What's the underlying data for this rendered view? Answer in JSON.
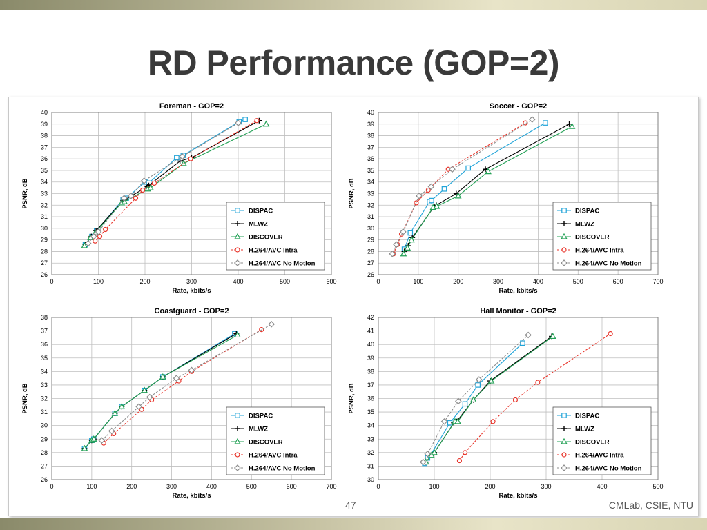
{
  "slide": {
    "title": "RD Performance (GOP=2)",
    "page_number": "47",
    "footer": "CMLab, CSIE, NTU"
  },
  "series_styles": {
    "DISPAC": {
      "color": "#1fa3d8",
      "marker": "square",
      "dash": false
    },
    "MLWZ": {
      "color": "#000000",
      "marker": "plus",
      "dash": false
    },
    "DISCOVER": {
      "color": "#22a055",
      "marker": "triangle",
      "dash": false
    },
    "H.264/AVC Intra": {
      "color": "#e8352b",
      "marker": "circle",
      "dash": true
    },
    "H.264/AVC No Motion": {
      "color": "#8c8c8c",
      "marker": "diamond",
      "dash": true
    }
  },
  "chart_data": [
    {
      "type": "line",
      "title": "Foreman - GOP=2",
      "xlabel": "Rate, kbits/s",
      "ylabel": "PSNR, dB",
      "xlim": [
        0,
        600
      ],
      "ylim": [
        26,
        40
      ],
      "xticks": [
        0,
        100,
        200,
        300,
        400,
        500,
        600
      ],
      "yticks": [
        26,
        27,
        28,
        29,
        30,
        31,
        32,
        33,
        34,
        35,
        36,
        37,
        38,
        39,
        40
      ],
      "grid": true,
      "legend": "bottom-right",
      "series": [
        {
          "name": "DISPAC",
          "x": [
            72,
            86,
            96,
            153,
            160,
            200,
            208,
            268,
            282,
            402,
            415
          ],
          "y": [
            28.6,
            29.3,
            29.8,
            32.5,
            32.6,
            34.0,
            33.9,
            36.1,
            36.3,
            39.2,
            39.4
          ]
        },
        {
          "name": "MLWZ",
          "x": [
            72,
            85,
            95,
            153,
            158,
            205,
            208,
            275,
            300,
            445
          ],
          "y": [
            28.6,
            29.3,
            29.8,
            32.4,
            32.5,
            33.6,
            33.7,
            35.8,
            36.1,
            39.3
          ]
        },
        {
          "name": "DISCOVER",
          "x": [
            70,
            83,
            93,
            150,
            156,
            206,
            212,
            283,
            460
          ],
          "y": [
            28.5,
            29.2,
            29.6,
            32.2,
            32.3,
            33.4,
            33.5,
            35.6,
            39.0
          ]
        },
        {
          "name": "H.264/AVC Intra",
          "x": [
            93,
            103,
            115,
            180,
            195,
            220,
            298,
            440
          ],
          "y": [
            28.9,
            29.3,
            29.9,
            32.6,
            33.3,
            33.9,
            36.0,
            39.3
          ]
        },
        {
          "name": "H.264/AVC No Motion",
          "x": [
            78,
            90,
            100,
            155,
            170,
            198,
            280,
            400
          ],
          "y": [
            28.7,
            29.3,
            29.7,
            32.6,
            32.8,
            34.1,
            36.2,
            39.1
          ]
        }
      ]
    },
    {
      "type": "line",
      "title": "Soccer - GOP=2",
      "xlabel": "Rate, kbits/s",
      "ylabel": "PSNR, dB",
      "xlim": [
        0,
        700
      ],
      "ylim": [
        26,
        40
      ],
      "xticks": [
        0,
        100,
        200,
        300,
        400,
        500,
        600,
        700
      ],
      "yticks": [
        26,
        27,
        28,
        29,
        30,
        31,
        32,
        33,
        34,
        35,
        36,
        37,
        38,
        39,
        40
      ],
      "grid": true,
      "legend": "bottom-right",
      "series": [
        {
          "name": "DISPAC",
          "x": [
            65,
            80,
            128,
            133,
            165,
            225,
            418
          ],
          "y": [
            28.2,
            29.6,
            32.3,
            32.4,
            33.4,
            35.2,
            39.1
          ]
        },
        {
          "name": "MLWZ",
          "x": [
            65,
            75,
            85,
            140,
            145,
            195,
            268,
            478
          ],
          "y": [
            28.0,
            28.5,
            29.2,
            31.9,
            32.0,
            33.0,
            35.1,
            39.0
          ]
        },
        {
          "name": "DISCOVER",
          "x": [
            63,
            73,
            83,
            137,
            146,
            200,
            275,
            485
          ],
          "y": [
            27.8,
            28.3,
            29.0,
            31.8,
            31.9,
            32.8,
            34.9,
            38.8
          ]
        },
        {
          "name": "H.264/AVC Intra",
          "x": [
            38,
            48,
            58,
            95,
            125,
            175,
            368
          ],
          "y": [
            27.8,
            28.6,
            29.5,
            32.2,
            33.3,
            35.1,
            39.1
          ]
        },
        {
          "name": "H.264/AVC No Motion",
          "x": [
            35,
            45,
            62,
            102,
            132,
            185,
            385
          ],
          "y": [
            27.8,
            28.6,
            29.7,
            32.8,
            33.6,
            35.1,
            39.4
          ]
        }
      ]
    },
    {
      "type": "line",
      "title": "Coastguard - GOP=2",
      "xlabel": "Rate, kbits/s",
      "ylabel": "PSNR, dB",
      "xlim": [
        0,
        700
      ],
      "ylim": [
        26,
        38
      ],
      "xticks": [
        0,
        100,
        200,
        300,
        400,
        500,
        600,
        700
      ],
      "yticks": [
        26,
        27,
        28,
        29,
        30,
        31,
        32,
        33,
        34,
        35,
        36,
        37,
        38
      ],
      "grid": true,
      "legend": "bottom-right",
      "series": [
        {
          "name": "DISPAC",
          "x": [
            82,
            100,
            105,
            158,
            175,
            232,
            278,
            458
          ],
          "y": [
            28.3,
            28.9,
            29.0,
            30.9,
            31.4,
            32.6,
            33.6,
            36.8
          ]
        },
        {
          "name": "MLWZ",
          "x": [
            82,
            100,
            105,
            158,
            175,
            232,
            278,
            462
          ],
          "y": [
            28.3,
            28.9,
            29.0,
            30.9,
            31.4,
            32.6,
            33.6,
            36.8
          ]
        },
        {
          "name": "DISCOVER",
          "x": [
            82,
            100,
            105,
            158,
            175,
            232,
            278,
            465
          ],
          "y": [
            28.3,
            28.9,
            29.0,
            30.9,
            31.4,
            32.6,
            33.6,
            36.7
          ]
        },
        {
          "name": "H.264/AVC Intra",
          "x": [
            130,
            155,
            225,
            250,
            318,
            350,
            525
          ],
          "y": [
            28.7,
            29.4,
            31.2,
            31.9,
            33.3,
            34.0,
            37.1
          ]
        },
        {
          "name": "H.264/AVC No Motion",
          "x": [
            125,
            150,
            218,
            245,
            312,
            350,
            550
          ],
          "y": [
            28.9,
            29.6,
            31.4,
            32.1,
            33.5,
            34.1,
            37.5
          ]
        }
      ]
    },
    {
      "type": "line",
      "title": "Hall Monitor - GOP=2",
      "xlabel": "Rate, kbits/s",
      "ylabel": "PSNR, dB",
      "xlim": [
        0,
        500
      ],
      "ylim": [
        30,
        42
      ],
      "xticks": [
        0,
        100,
        200,
        300,
        400,
        500
      ],
      "yticks": [
        30,
        31,
        32,
        33,
        34,
        35,
        36,
        37,
        38,
        39,
        40,
        41,
        42
      ],
      "grid": true,
      "legend": "bottom-right",
      "series": [
        {
          "name": "DISPAC",
          "x": [
            83,
            88,
            93,
            128,
            155,
            178,
            258
          ],
          "y": [
            31.2,
            31.6,
            31.8,
            34.2,
            35.6,
            37.0,
            40.1
          ]
        },
        {
          "name": "MLWZ",
          "x": [
            85,
            95,
            100,
            135,
            140,
            170,
            200,
            310
          ],
          "y": [
            31.3,
            31.8,
            32.0,
            34.2,
            34.3,
            35.9,
            37.3,
            40.6
          ]
        },
        {
          "name": "DISCOVER",
          "x": [
            85,
            95,
            100,
            137,
            142,
            170,
            202,
            312
          ],
          "y": [
            31.3,
            31.8,
            32.0,
            34.3,
            34.3,
            35.9,
            37.3,
            40.6
          ]
        },
        {
          "name": "H.264/AVC Intra",
          "x": [
            145,
            155,
            205,
            245,
            285,
            415
          ],
          "y": [
            31.4,
            32.0,
            34.3,
            35.9,
            37.2,
            40.8
          ]
        },
        {
          "name": "H.264/AVC No Motion",
          "x": [
            80,
            88,
            118,
            143,
            180,
            268
          ],
          "y": [
            31.3,
            31.9,
            34.3,
            35.8,
            37.4,
            40.7
          ]
        }
      ]
    }
  ]
}
